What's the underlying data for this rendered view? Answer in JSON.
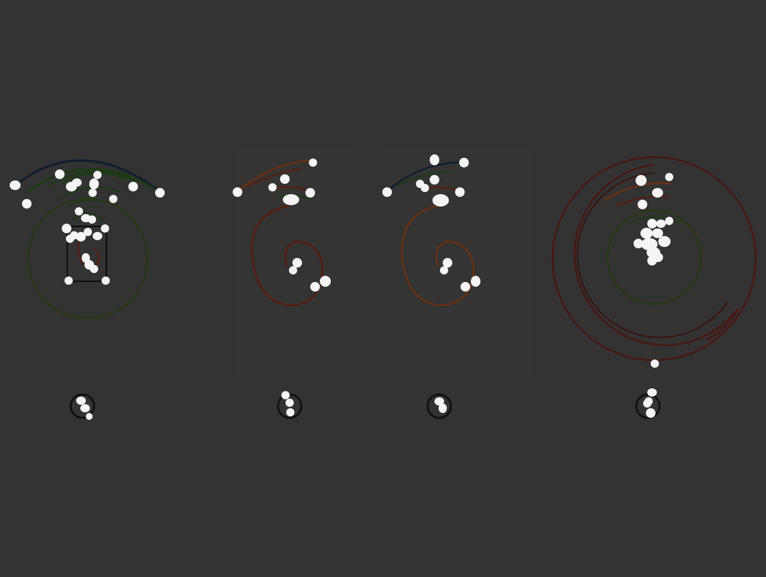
{
  "colors": {
    "background": "#333333",
    "panel": "#343434",
    "green_curve": "#1d3a14",
    "green_circle": "#243a0e",
    "red_curve": "#5a1b0e",
    "dark_red_circle": "#4a1612",
    "orange_curve": "#6a3010",
    "navy_curve": "#0f1d2e",
    "dot": "#f4f4f4",
    "box": "#0c0c0c"
  },
  "figure": {
    "panels": [
      {
        "id": "a",
        "label": "",
        "contents": [
          "top-arc-fan",
          "green-circle",
          "square-with-red-spiral",
          "dot-cluster"
        ]
      },
      {
        "id": "b",
        "label": "",
        "contents": [
          "top-arc-fan",
          "red-spiral",
          "dot-cluster"
        ]
      },
      {
        "id": "c",
        "label": "",
        "contents": [
          "top-arc-fan",
          "red-spiral",
          "dot-cluster"
        ]
      },
      {
        "id": "d",
        "label": "",
        "contents": [
          "large-red-rings",
          "green-circle",
          "dot-cluster"
        ]
      }
    ]
  }
}
